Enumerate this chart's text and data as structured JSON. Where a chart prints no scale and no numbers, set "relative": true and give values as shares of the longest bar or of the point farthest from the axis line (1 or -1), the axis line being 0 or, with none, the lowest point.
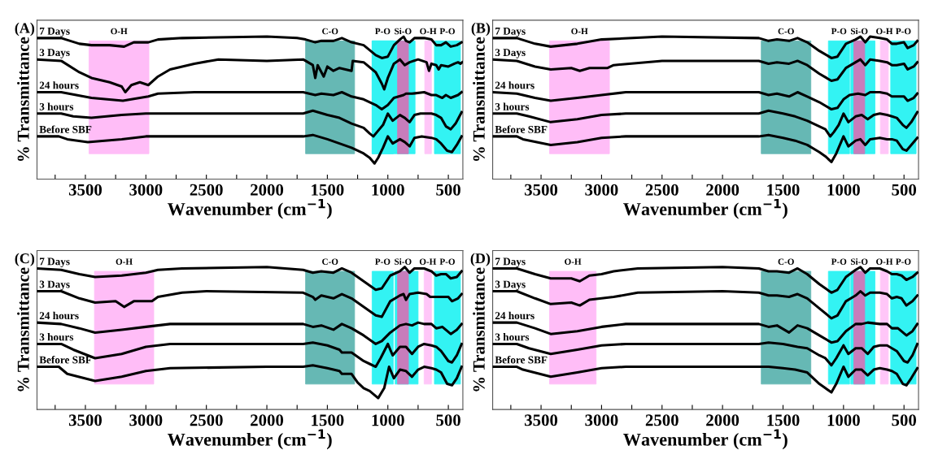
{
  "chart_data": [
    {
      "type": "line",
      "title": "(A)",
      "xlabel": "Wavenumber (cm$^{−1}$)",
      "ylabel": "% Transmittance",
      "relative": true,
      "grid": false,
      "xlim": [
        3900,
        380
      ],
      "xticks": [
        {
          "value": 3750,
          "label": null
        },
        3500,
        {
          "value": 3250,
          "label": null
        },
        3000,
        {
          "value": 2750,
          "label": null
        },
        2500,
        {
          "value": 2250,
          "label": null
        },
        2000,
        {
          "value": 1750,
          "label": null
        },
        1500,
        {
          "value": 1250,
          "label": null
        },
        1000,
        {
          "value": 750,
          "label": null
        },
        500
      ],
      "bands": [
        {
          "axis": "x",
          "from": 3470,
          "to": 2975,
          "label": "O-H",
          "color": "#ffbdf7"
        },
        {
          "axis": "x",
          "from": 1680,
          "to": 1275,
          "label": "C-O",
          "color": "#66b8b4"
        },
        {
          "axis": "x",
          "from": 1130,
          "to": 955,
          "label": "P-O",
          "color": "#33f3f3"
        },
        {
          "axis": "x",
          "from": 1130,
          "to": 775,
          "label": null,
          "color": "#33f3f3"
        },
        {
          "axis": "x",
          "from": 920,
          "to": 830,
          "label": "Si-O",
          "color": "#c77dbb"
        },
        {
          "axis": "x",
          "from": 695,
          "to": 640,
          "label": "O-H",
          "color": "#ffc6f8"
        },
        {
          "axis": "x",
          "from": 615,
          "to": 400,
          "label": "P-O",
          "color": "#33f3f3"
        }
      ],
      "series": [
        {
          "name": "7 Days",
          "color": "#000000",
          "x": [
            3900,
            3700,
            3550,
            3450,
            3300,
            3180,
            3100,
            2980,
            2900,
            2700,
            2000,
            1750,
            1680,
            1600,
            1550,
            1450,
            1380,
            1300,
            1200,
            1100,
            1050,
            1000,
            950,
            900,
            870,
            850,
            820,
            780,
            700,
            640,
            600,
            560,
            520,
            480,
            430,
            390
          ],
          "values": [
            0.99,
            0.99,
            0.95,
            0.94,
            0.94,
            0.93,
            0.96,
            0.96,
            0.98,
            0.99,
            1.0,
            0.99,
            0.98,
            0.96,
            0.97,
            0.97,
            0.99,
            0.96,
            0.94,
            0.87,
            0.85,
            0.86,
            0.94,
            0.98,
            1.0,
            0.97,
            0.96,
            0.99,
            0.99,
            0.98,
            0.94,
            0.94,
            0.96,
            0.93,
            0.94,
            0.96
          ]
        },
        {
          "name": "3 Days",
          "color": "#000000",
          "x": [
            3900,
            3700,
            3550,
            3450,
            3300,
            3200,
            3170,
            3120,
            3050,
            2980,
            2900,
            2800,
            2600,
            2400,
            2000,
            1700,
            1620,
            1600,
            1580,
            1530,
            1500,
            1450,
            1400,
            1300,
            1290,
            1200,
            1100,
            1050,
            1030,
            1000,
            950,
            900,
            860,
            820,
            750,
            680,
            660,
            640,
            600,
            580,
            560,
            500,
            450,
            420,
            400,
            385
          ],
          "values": [
            0.84,
            0.83,
            0.75,
            0.71,
            0.68,
            0.65,
            0.61,
            0.66,
            0.68,
            0.66,
            0.72,
            0.77,
            0.81,
            0.84,
            0.83,
            0.84,
            0.8,
            0.71,
            0.8,
            0.72,
            0.79,
            0.76,
            0.78,
            0.76,
            0.83,
            0.82,
            0.75,
            0.67,
            0.63,
            0.71,
            0.81,
            0.84,
            0.8,
            0.82,
            0.84,
            0.82,
            0.76,
            0.81,
            0.8,
            0.77,
            0.8,
            0.79,
            0.81,
            0.82,
            0.81,
            0.82
          ]
        },
        {
          "name": "24 hours",
          "color": "#000000",
          "x": [
            3900,
            3700,
            3450,
            3190,
            2980,
            2900,
            2600,
            1700,
            1600,
            1550,
            1450,
            1380,
            1300,
            1200,
            1100,
            1050,
            1000,
            950,
            870,
            850,
            800,
            700,
            640,
            600,
            550,
            520,
            480,
            420,
            390
          ],
          "values": [
            0.61,
            0.61,
            0.57,
            0.55,
            0.58,
            0.6,
            0.61,
            0.61,
            0.59,
            0.6,
            0.59,
            0.61,
            0.58,
            0.56,
            0.52,
            0.49,
            0.52,
            0.57,
            0.59,
            0.6,
            0.6,
            0.61,
            0.59,
            0.59,
            0.57,
            0.59,
            0.57,
            0.59,
            0.61
          ]
        },
        {
          "name": "3 hours",
          "color": "#000000",
          "x": [
            3900,
            3700,
            3600,
            3450,
            3200,
            3000,
            2500,
            1700,
            1620,
            1500,
            1400,
            1300,
            1200,
            1150,
            1120,
            1080,
            1040,
            1000,
            960,
            900,
            860,
            820,
            780,
            730,
            700,
            640,
            600,
            560,
            520,
            480,
            440,
            390
          ],
          "values": [
            0.46,
            0.46,
            0.44,
            0.43,
            0.45,
            0.46,
            0.46,
            0.46,
            0.48,
            0.45,
            0.43,
            0.39,
            0.36,
            0.32,
            0.3,
            0.34,
            0.38,
            0.46,
            0.41,
            0.45,
            0.43,
            0.4,
            0.45,
            0.46,
            0.46,
            0.46,
            0.45,
            0.43,
            0.37,
            0.35,
            0.39,
            0.47
          ]
        },
        {
          "name": "Before SBF",
          "color": "#000000",
          "x": [
            3900,
            3720,
            3650,
            3480,
            3200,
            3000,
            2000,
            1700,
            1620,
            1500,
            1400,
            1300,
            1200,
            1150,
            1110,
            1080,
            1040,
            1000,
            960,
            900,
            860,
            820,
            780,
            720,
            640,
            600,
            560,
            510,
            470,
            430,
            390
          ],
          "values": [
            0.3,
            0.3,
            0.28,
            0.26,
            0.28,
            0.3,
            0.3,
            0.3,
            0.31,
            0.28,
            0.25,
            0.22,
            0.18,
            0.15,
            0.11,
            0.15,
            0.22,
            0.3,
            0.25,
            0.28,
            0.26,
            0.23,
            0.29,
            0.3,
            0.29,
            0.28,
            0.25,
            0.2,
            0.19,
            0.24,
            0.3
          ]
        }
      ]
    },
    {
      "type": "line",
      "title": "(B)",
      "xlabel": "Wavenumber (cm$^{−1}$)",
      "ylabel": "% Transmittance",
      "relative": true,
      "grid": false,
      "xlim": [
        3900,
        380
      ],
      "xticks": [
        {
          "value": 3750,
          "label": null
        },
        3500,
        {
          "value": 3250,
          "label": null
        },
        3000,
        {
          "value": 2750,
          "label": null
        },
        2500,
        {
          "value": 2250,
          "label": null
        },
        2000,
        {
          "value": 1750,
          "label": null
        },
        1500,
        {
          "value": 1250,
          "label": null
        },
        1000,
        {
          "value": 750,
          "label": null
        },
        500
      ],
      "bands": [
        {
          "axis": "x",
          "from": 3430,
          "to": 2935,
          "label": "O-H",
          "color": "#ffbdf7"
        },
        {
          "axis": "x",
          "from": 1680,
          "to": 1270,
          "label": "C-O",
          "color": "#66b8b4"
        },
        {
          "axis": "x",
          "from": 1125,
          "to": 950,
          "label": "P-O",
          "color": "#33f3f3"
        },
        {
          "axis": "x",
          "from": 940,
          "to": 740,
          "label": null,
          "color": "#33f3f3"
        },
        {
          "axis": "x",
          "from": 915,
          "to": 825,
          "label": "Si-O",
          "color": "#c77dbb"
        },
        {
          "axis": "x",
          "from": 695,
          "to": 630,
          "label": "O-H",
          "color": "#ffc6f8"
        },
        {
          "axis": "x",
          "from": 610,
          "to": 400,
          "label": "P-O",
          "color": "#33f3f3"
        }
      ],
      "series": [
        {
          "name": "7 Days",
          "color": "#000000",
          "x": [
            3900,
            3700,
            3550,
            3420,
            3200,
            3000,
            2500,
            1700,
            1620,
            1550,
            1450,
            1380,
            1300,
            1200,
            1100,
            1050,
            980,
            900,
            860,
            820,
            780,
            700,
            640,
            600,
            560,
            500,
            470,
            420,
            390
          ],
          "values": [
            0.99,
            0.99,
            0.95,
            0.93,
            0.95,
            0.98,
            1.0,
            0.99,
            0.97,
            0.98,
            0.97,
            0.99,
            0.96,
            0.9,
            0.85,
            0.86,
            0.95,
            0.98,
            1.0,
            0.96,
            1.0,
            0.99,
            0.98,
            0.95,
            0.95,
            0.96,
            0.92,
            0.94,
            0.97
          ]
        },
        {
          "name": "3 Days",
          "color": "#000000",
          "x": [
            3900,
            3700,
            3550,
            3420,
            3250,
            3180,
            3100,
            2950,
            2900,
            2500,
            1700,
            1620,
            1550,
            1450,
            1380,
            1300,
            1200,
            1100,
            1050,
            980,
            900,
            860,
            820,
            780,
            700,
            640,
            600,
            560,
            500,
            470,
            420,
            390
          ],
          "values": [
            0.84,
            0.83,
            0.79,
            0.77,
            0.78,
            0.76,
            0.78,
            0.78,
            0.8,
            0.83,
            0.83,
            0.81,
            0.82,
            0.81,
            0.83,
            0.8,
            0.74,
            0.69,
            0.7,
            0.78,
            0.82,
            0.84,
            0.8,
            0.84,
            0.83,
            0.82,
            0.8,
            0.8,
            0.81,
            0.77,
            0.79,
            0.82
          ]
        },
        {
          "name": "24 hours",
          "color": "#000000",
          "x": [
            3900,
            3700,
            3550,
            3420,
            3200,
            3000,
            2800,
            1700,
            1620,
            1550,
            1450,
            1380,
            1300,
            1200,
            1100,
            1050,
            1000,
            950,
            880,
            820,
            780,
            700,
            640,
            600,
            550,
            500,
            470,
            420,
            390
          ],
          "values": [
            0.61,
            0.6,
            0.57,
            0.55,
            0.57,
            0.59,
            0.61,
            0.61,
            0.59,
            0.6,
            0.58,
            0.61,
            0.58,
            0.54,
            0.49,
            0.5,
            0.56,
            0.59,
            0.6,
            0.59,
            0.61,
            0.61,
            0.6,
            0.58,
            0.58,
            0.58,
            0.55,
            0.57,
            0.6
          ]
        },
        {
          "name": "3 hours",
          "color": "#000000",
          "x": [
            3900,
            3700,
            3600,
            3420,
            3200,
            3000,
            2800,
            1700,
            1620,
            1500,
            1400,
            1300,
            1200,
            1150,
            1110,
            1080,
            1040,
            1000,
            960,
            900,
            850,
            800,
            750,
            700,
            640,
            600,
            560,
            510,
            480,
            440,
            390
          ],
          "values": [
            0.46,
            0.46,
            0.44,
            0.4,
            0.42,
            0.45,
            0.46,
            0.46,
            0.48,
            0.46,
            0.44,
            0.41,
            0.37,
            0.35,
            0.3,
            0.33,
            0.38,
            0.46,
            0.4,
            0.44,
            0.45,
            0.42,
            0.45,
            0.46,
            0.45,
            0.44,
            0.43,
            0.38,
            0.36,
            0.4,
            0.47
          ]
        },
        {
          "name": "Before SBF",
          "color": "#000000",
          "x": [
            3900,
            3700,
            3650,
            3420,
            3200,
            3000,
            2800,
            1700,
            1620,
            1500,
            1400,
            1300,
            1200,
            1150,
            1100,
            1060,
            1000,
            960,
            900,
            860,
            820,
            780,
            700,
            640,
            600,
            560,
            510,
            480,
            440,
            390
          ],
          "values": [
            0.3,
            0.3,
            0.28,
            0.24,
            0.26,
            0.29,
            0.3,
            0.3,
            0.31,
            0.29,
            0.27,
            0.24,
            0.19,
            0.16,
            0.12,
            0.18,
            0.3,
            0.23,
            0.27,
            0.28,
            0.24,
            0.28,
            0.29,
            0.28,
            0.28,
            0.27,
            0.21,
            0.2,
            0.24,
            0.29
          ]
        }
      ]
    },
    {
      "type": "line",
      "title": "(C)",
      "xlabel": "Wavenumber (cm$^{−1}$)",
      "ylabel": "% Transmittance",
      "relative": true,
      "grid": false,
      "xlim": [
        3900,
        380
      ],
      "xticks": [
        {
          "value": 3750,
          "label": null
        },
        3500,
        {
          "value": 3250,
          "label": null
        },
        3000,
        {
          "value": 2750,
          "label": null
        },
        2500,
        {
          "value": 2250,
          "label": null
        },
        2000,
        {
          "value": 1750,
          "label": null
        },
        1500,
        {
          "value": 1250,
          "label": null
        },
        1000,
        {
          "value": 750,
          "label": null
        },
        500
      ],
      "bands": [
        {
          "axis": "x",
          "from": 3425,
          "to": 2935,
          "label": "O-H",
          "color": "#ffbdf7"
        },
        {
          "axis": "x",
          "from": 1680,
          "to": 1275,
          "label": "C-O",
          "color": "#66b8b4"
        },
        {
          "axis": "x",
          "from": 1130,
          "to": 955,
          "label": "P-O",
          "color": "#33f3f3"
        },
        {
          "axis": "x",
          "from": 940,
          "to": 750,
          "label": null,
          "color": "#33f3f3"
        },
        {
          "axis": "x",
          "from": 920,
          "to": 830,
          "label": "Si-O",
          "color": "#c77dbb"
        },
        {
          "axis": "x",
          "from": 700,
          "to": 640,
          "label": "O-H",
          "color": "#ffc6f8"
        },
        {
          "axis": "x",
          "from": 615,
          "to": 400,
          "label": "P-O",
          "color": "#33f3f3"
        }
      ],
      "series": [
        {
          "name": "7 Days",
          "color": "#000000",
          "x": [
            3900,
            3700,
            3550,
            3420,
            3200,
            3000,
            2900,
            2700,
            2000,
            1700,
            1620,
            1550,
            1450,
            1380,
            1300,
            1200,
            1100,
            1050,
            980,
            900,
            860,
            820,
            780,
            700,
            640,
            600,
            560,
            520,
            480,
            430,
            390
          ],
          "values": [
            0.99,
            0.98,
            0.95,
            0.93,
            0.94,
            0.96,
            0.98,
            0.99,
            1.0,
            0.98,
            0.96,
            0.97,
            0.96,
            0.99,
            0.96,
            0.9,
            0.84,
            0.85,
            0.94,
            0.97,
            1.0,
            0.96,
            0.99,
            0.99,
            0.97,
            0.94,
            0.95,
            0.95,
            0.92,
            0.93,
            0.97
          ]
        },
        {
          "name": "3 Days",
          "color": "#000000",
          "x": [
            3900,
            3700,
            3550,
            3420,
            3250,
            3180,
            3100,
            2950,
            2900,
            2700,
            2500,
            1700,
            1620,
            1600,
            1550,
            1450,
            1380,
            1300,
            1200,
            1100,
            1050,
            980,
            900,
            870,
            850,
            820,
            750,
            680,
            650,
            600,
            560,
            500,
            470,
            420,
            390
          ],
          "values": [
            0.83,
            0.83,
            0.78,
            0.75,
            0.76,
            0.72,
            0.76,
            0.76,
            0.79,
            0.82,
            0.83,
            0.82,
            0.79,
            0.77,
            0.8,
            0.78,
            0.81,
            0.78,
            0.72,
            0.66,
            0.65,
            0.76,
            0.8,
            0.81,
            0.77,
            0.81,
            0.82,
            0.81,
            0.79,
            0.79,
            0.79,
            0.79,
            0.76,
            0.78,
            0.81
          ]
        },
        {
          "name": "24 hours",
          "color": "#000000",
          "x": [
            3900,
            3700,
            3550,
            3420,
            3200,
            3000,
            2800,
            1700,
            1620,
            1550,
            1450,
            1380,
            1300,
            1200,
            1100,
            1050,
            980,
            900,
            850,
            800,
            750,
            700,
            640,
            600,
            550,
            480,
            430,
            390
          ],
          "values": [
            0.61,
            0.6,
            0.57,
            0.54,
            0.56,
            0.58,
            0.6,
            0.6,
            0.58,
            0.59,
            0.56,
            0.6,
            0.57,
            0.52,
            0.46,
            0.48,
            0.54,
            0.59,
            0.6,
            0.59,
            0.61,
            0.6,
            0.6,
            0.57,
            0.58,
            0.53,
            0.56,
            0.6
          ]
        },
        {
          "name": "3 hours",
          "color": "#000000",
          "x": [
            3900,
            3700,
            3600,
            3420,
            3200,
            3000,
            2800,
            1700,
            1620,
            1500,
            1400,
            1380,
            1300,
            1200,
            1150,
            1100,
            1060,
            1000,
            960,
            900,
            850,
            800,
            750,
            700,
            640,
            600,
            560,
            500,
            470,
            430,
            390
          ],
          "values": [
            0.46,
            0.46,
            0.42,
            0.36,
            0.39,
            0.44,
            0.46,
            0.46,
            0.47,
            0.45,
            0.42,
            0.4,
            0.4,
            0.34,
            0.32,
            0.3,
            0.36,
            0.46,
            0.38,
            0.44,
            0.44,
            0.39,
            0.44,
            0.46,
            0.45,
            0.44,
            0.41,
            0.34,
            0.33,
            0.38,
            0.46
          ]
        },
        {
          "name": "Before SBF",
          "color": "#000000",
          "x": [
            3900,
            3720,
            3650,
            3420,
            3200,
            3000,
            2800,
            2000,
            1700,
            1620,
            1500,
            1400,
            1380,
            1300,
            1250,
            1200,
            1150,
            1080,
            1030,
            990,
            950,
            900,
            850,
            800,
            750,
            700,
            640,
            600,
            560,
            510,
            470,
            430,
            390
          ],
          "values": [
            0.3,
            0.3,
            0.25,
            0.2,
            0.23,
            0.27,
            0.29,
            0.3,
            0.3,
            0.31,
            0.29,
            0.27,
            0.25,
            0.25,
            0.19,
            0.15,
            0.13,
            0.08,
            0.15,
            0.3,
            0.22,
            0.28,
            0.27,
            0.23,
            0.28,
            0.3,
            0.29,
            0.28,
            0.26,
            0.18,
            0.17,
            0.22,
            0.3
          ]
        }
      ]
    },
    {
      "type": "line",
      "title": "(D)",
      "xlabel": "Wavenumber (cm$^{−1}$)",
      "ylabel": "% Transmittance",
      "relative": true,
      "grid": false,
      "xlim": [
        3900,
        380
      ],
      "xticks": [
        {
          "value": 3750,
          "label": null
        },
        3500,
        {
          "value": 3250,
          "label": null
        },
        3000,
        {
          "value": 2750,
          "label": null
        },
        2500,
        {
          "value": 2250,
          "label": null
        },
        2000,
        {
          "value": 1750,
          "label": null
        },
        1500,
        {
          "value": 1250,
          "label": null
        },
        1000,
        {
          "value": 750,
          "label": null
        },
        500
      ],
      "bands": [
        {
          "axis": "x",
          "from": 3430,
          "to": 3045,
          "label": "O-H",
          "color": "#ffbdf7"
        },
        {
          "axis": "x",
          "from": 1680,
          "to": 1270,
          "label": "C-O",
          "color": "#66b8b4"
        },
        {
          "axis": "x",
          "from": 1125,
          "to": 950,
          "label": "P-O",
          "color": "#33f3f3"
        },
        {
          "axis": "x",
          "from": 940,
          "to": 740,
          "label": null,
          "color": "#33f3f3"
        },
        {
          "axis": "x",
          "from": 915,
          "to": 825,
          "label": "Si-O",
          "color": "#c77dbb"
        },
        {
          "axis": "x",
          "from": 695,
          "to": 630,
          "label": "O-H",
          "color": "#ffc6f8"
        },
        {
          "axis": "x",
          "from": 610,
          "to": 400,
          "label": "P-O",
          "color": "#33f3f3"
        }
      ],
      "series": [
        {
          "name": "7 Days",
          "color": "#000000",
          "x": [
            3900,
            3700,
            3550,
            3420,
            3250,
            3180,
            3100,
            3000,
            2900,
            2700,
            2000,
            1700,
            1620,
            1550,
            1450,
            1380,
            1300,
            1200,
            1100,
            1050,
            980,
            900,
            860,
            820,
            780,
            700,
            640,
            600,
            560,
            520,
            480,
            430,
            390
          ],
          "values": [
            0.99,
            0.99,
            0.95,
            0.92,
            0.92,
            0.9,
            0.94,
            0.95,
            0.97,
            0.99,
            1.0,
            0.99,
            0.97,
            0.97,
            0.96,
            0.99,
            0.95,
            0.88,
            0.82,
            0.84,
            0.93,
            0.98,
            1.0,
            0.96,
            0.99,
            0.99,
            0.97,
            0.95,
            0.95,
            0.94,
            0.91,
            0.93,
            0.96
          ]
        },
        {
          "name": "3 Days",
          "color": "#000000",
          "x": [
            3900,
            3700,
            3550,
            3420,
            3250,
            3180,
            3100,
            3000,
            2900,
            2700,
            2000,
            1700,
            1620,
            1550,
            1450,
            1380,
            1300,
            1200,
            1100,
            1050,
            980,
            900,
            860,
            820,
            780,
            700,
            640,
            600,
            560,
            520,
            480,
            430,
            390
          ],
          "values": [
            0.83,
            0.83,
            0.78,
            0.74,
            0.75,
            0.73,
            0.77,
            0.78,
            0.79,
            0.82,
            0.83,
            0.82,
            0.8,
            0.8,
            0.79,
            0.81,
            0.78,
            0.71,
            0.64,
            0.66,
            0.76,
            0.8,
            0.83,
            0.8,
            0.82,
            0.82,
            0.81,
            0.78,
            0.79,
            0.78,
            0.73,
            0.76,
            0.8
          ]
        },
        {
          "name": "24 hours",
          "color": "#000000",
          "x": [
            3900,
            3700,
            3550,
            3420,
            3200,
            3000,
            2800,
            1700,
            1620,
            1550,
            1450,
            1380,
            1300,
            1200,
            1100,
            1050,
            980,
            900,
            850,
            800,
            700,
            640,
            600,
            550,
            480,
            430,
            390
          ],
          "values": [
            0.61,
            0.61,
            0.57,
            0.53,
            0.55,
            0.58,
            0.6,
            0.6,
            0.58,
            0.59,
            0.54,
            0.59,
            0.57,
            0.52,
            0.47,
            0.48,
            0.55,
            0.6,
            0.6,
            0.61,
            0.6,
            0.6,
            0.57,
            0.57,
            0.52,
            0.55,
            0.6
          ]
        },
        {
          "name": "3 hours",
          "color": "#000000",
          "x": [
            3900,
            3700,
            3600,
            3420,
            3200,
            3000,
            2800,
            1700,
            1620,
            1500,
            1380,
            1300,
            1200,
            1150,
            1100,
            1060,
            1000,
            960,
            900,
            850,
            800,
            750,
            700,
            640,
            600,
            560,
            500,
            470,
            430,
            390
          ],
          "values": [
            0.46,
            0.46,
            0.43,
            0.39,
            0.42,
            0.45,
            0.46,
            0.46,
            0.47,
            0.46,
            0.44,
            0.43,
            0.38,
            0.36,
            0.31,
            0.36,
            0.45,
            0.39,
            0.43,
            0.43,
            0.39,
            0.44,
            0.45,
            0.45,
            0.43,
            0.41,
            0.34,
            0.33,
            0.38,
            0.46
          ]
        },
        {
          "name": "Before SBF",
          "color": "#000000",
          "x": [
            3900,
            3700,
            3650,
            3420,
            3200,
            3000,
            2800,
            1700,
            1620,
            1500,
            1400,
            1300,
            1200,
            1150,
            1100,
            1060,
            1000,
            960,
            900,
            850,
            800,
            750,
            700,
            640,
            600,
            560,
            510,
            480,
            440,
            390
          ],
          "values": [
            0.3,
            0.3,
            0.28,
            0.23,
            0.26,
            0.29,
            0.3,
            0.3,
            0.3,
            0.29,
            0.28,
            0.26,
            0.18,
            0.15,
            0.12,
            0.18,
            0.3,
            0.23,
            0.28,
            0.28,
            0.24,
            0.28,
            0.29,
            0.28,
            0.27,
            0.25,
            0.18,
            0.17,
            0.22,
            0.29
          ]
        }
      ]
    }
  ]
}
